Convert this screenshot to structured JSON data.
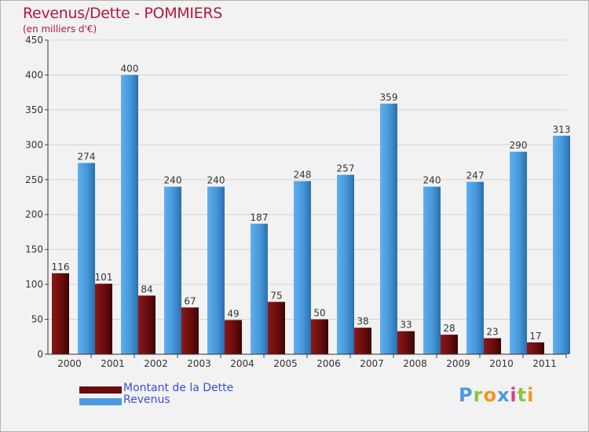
{
  "chart_data": {
    "type": "bar",
    "title": "Revenus/Dette - POMMIERS",
    "subtitle": "(en milliers d'€)",
    "categories": [
      "2000",
      "2001",
      "2002",
      "2003",
      "2004",
      "2005",
      "2006",
      "2007",
      "2008",
      "2009",
      "2010",
      "2011"
    ],
    "series": [
      {
        "name": "Montant de la Dette",
        "color": "#7a1010",
        "values": [
          116,
          101,
          84,
          67,
          49,
          75,
          50,
          38,
          33,
          28,
          23,
          17
        ]
      },
      {
        "name": "Revenus",
        "color": "#4e9fe0",
        "values": [
          274,
          400,
          240,
          240,
          187,
          248,
          257,
          359,
          240,
          247,
          290,
          313
        ]
      }
    ],
    "ylim": [
      0,
      450
    ],
    "yticks": [
      0,
      50,
      100,
      150,
      200,
      250,
      300,
      350,
      400,
      450
    ],
    "xlabel": "",
    "ylabel": "",
    "grid": true,
    "legend_position": "bottom-left"
  },
  "logo": {
    "letters": [
      "P",
      "r",
      "o",
      "x",
      "i",
      "t",
      "i"
    ],
    "colors": [
      "#4a9be0",
      "#8cc63f",
      "#f7941d",
      "#4a9be0",
      "#e03c8a",
      "#8cc63f",
      "#f7941d"
    ]
  }
}
